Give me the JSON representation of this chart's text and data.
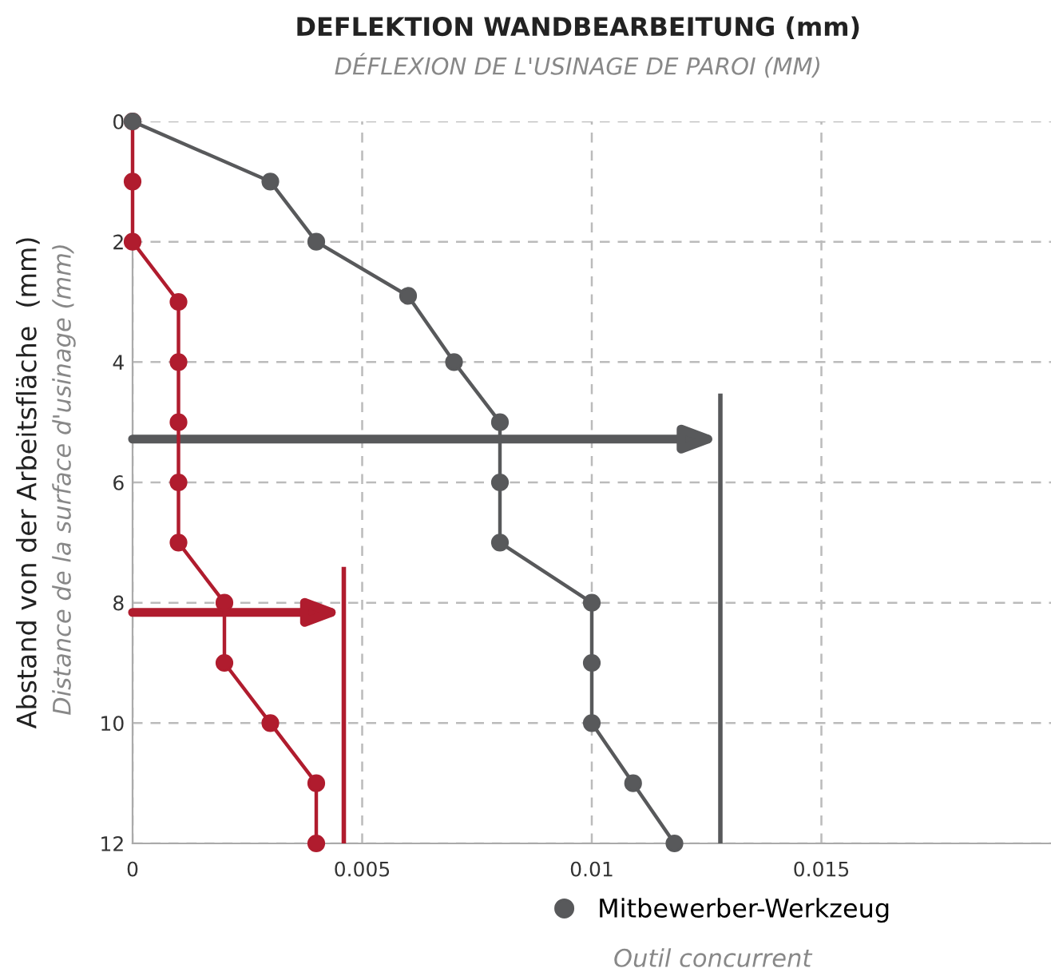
{
  "chart_data": {
    "type": "line",
    "title": "DEFLEKTION WANDBEARBEITUNG (mm)",
    "subtitle": "DÉFLEXION DE L'USINAGE DE PAROI (MM)",
    "ylabel": "Abstand von der Arbeitsfläche  (mm)",
    "annotations": [
      "Distance de la surface d'usinage (mm)",
      "Outil concurrent"
    ],
    "series": [
      {
        "color": "#b01c2e",
        "x": [
          0,
          0,
          0,
          0.001,
          0.001,
          0.001,
          0.001,
          0.001,
          0.002,
          0.002,
          0.003,
          0.004,
          0.004
        ],
        "values": [
          0,
          1,
          2,
          3,
          4,
          5,
          6,
          7,
          8,
          9,
          10,
          11,
          12
        ]
      },
      {
        "name": "Mitbewerber-Werkzeug",
        "color": "#58595b",
        "x": [
          0,
          0.003,
          0.004,
          0.006,
          0.007,
          0.008,
          0.008,
          0.008,
          0.01,
          0.01,
          0.01,
          0.0109,
          0.0118
        ],
        "values": [
          0,
          1,
          2,
          2.9,
          4,
          5,
          6,
          7,
          8,
          9,
          10,
          11,
          12
        ]
      }
    ],
    "ref_lines": [
      {
        "axis": "x",
        "value": 0.0046,
        "color": "#b01c2e"
      },
      {
        "axis": "x",
        "value": 0.0128,
        "color": "#58595b"
      }
    ],
    "xlim": [
      0,
      0.02
    ],
    "xticks": [
      0,
      0.005,
      0.01,
      0.015
    ],
    "ylim": [
      12,
      0
    ],
    "yticks": [
      0,
      2,
      4,
      6,
      8,
      10,
      12
    ],
    "grid": true,
    "legend": "bottom",
    "marker": "circle",
    "line_style": "solid"
  }
}
